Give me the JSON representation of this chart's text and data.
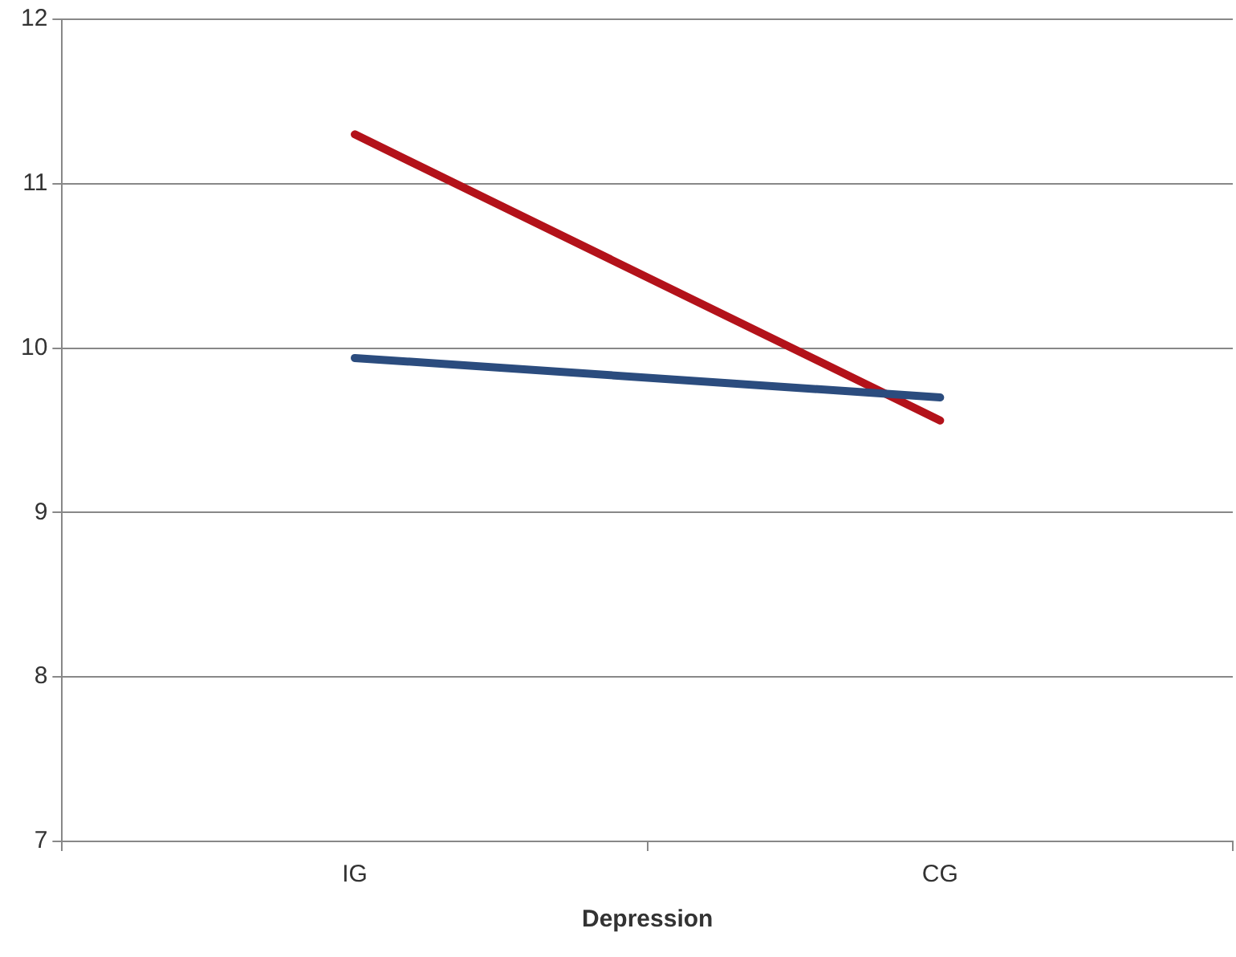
{
  "chart_data": {
    "type": "line",
    "xlabel": "Depression",
    "categories": [
      "IG",
      "CG"
    ],
    "series": [
      {
        "color": "#2b4c7e",
        "values": [
          9.94,
          9.7
        ]
      },
      {
        "color": "#b3121a",
        "values": [
          11.3,
          9.56
        ]
      }
    ],
    "ylim": [
      7,
      12
    ],
    "yticks": [
      7,
      8,
      9,
      10,
      11,
      12
    ],
    "grid": "y"
  }
}
